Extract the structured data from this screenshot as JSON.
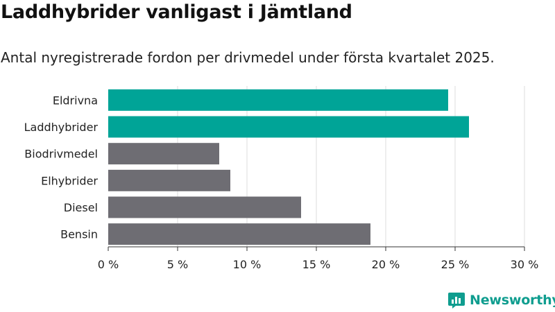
{
  "title": "Laddhybrider vanligast i Jämtland",
  "subtitle": "Antal nyregistrerade fordon per drivmedel under första kvartalet 2025.",
  "brand": "Newsworthy",
  "colors": {
    "highlight": "#00a497",
    "default": "#6e6d73",
    "grid": "#dedede",
    "axis": "#333333",
    "brand": "#0f9d8f"
  },
  "chart_data": {
    "type": "bar",
    "orientation": "horizontal",
    "categories": [
      "Eldrivna",
      "Laddhybrider",
      "Biodrivmedel",
      "Elhybrider",
      "Diesel",
      "Bensin"
    ],
    "values": [
      24.5,
      26.0,
      8.0,
      8.8,
      13.9,
      18.9
    ],
    "highlighted": [
      true,
      true,
      false,
      false,
      false,
      false
    ],
    "xlim": [
      0,
      30
    ],
    "xticks": [
      0,
      5,
      10,
      15,
      20,
      25,
      30
    ],
    "xtick_labels": [
      "0 %",
      "5 %",
      "10 %",
      "15 %",
      "20 %",
      "25 %",
      "30 %"
    ],
    "xlabel": "",
    "ylabel": "",
    "grid": true
  }
}
